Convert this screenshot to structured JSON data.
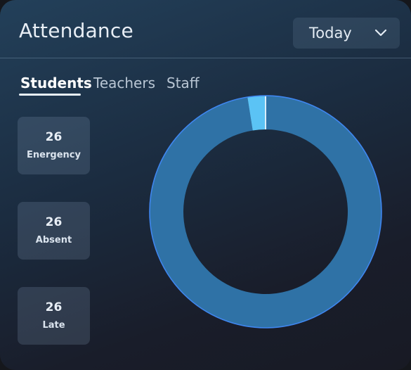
{
  "header": {
    "title": "Attendance",
    "period_select": {
      "value": "Today"
    }
  },
  "tabs": [
    {
      "label": "Students",
      "active": true
    },
    {
      "label": "Teachers",
      "active": false
    },
    {
      "label": "Staff",
      "active": false
    }
  ],
  "stats": [
    {
      "value": "26",
      "label": "Energency"
    },
    {
      "value": "26",
      "label": "Absent"
    },
    {
      "value": "26",
      "label": "Late"
    }
  ],
  "chart_data": {
    "type": "pie",
    "donut": true,
    "slices": [
      {
        "value": 97.5,
        "color": "#2f72a6"
      },
      {
        "value": 2.5,
        "color": "#5bc3f5"
      }
    ]
  },
  "colors": {
    "ring_main": "#2f72a6",
    "ring_accent": "#5bc3f5",
    "ring_outline": "#3f86ef"
  },
  "icons": {
    "dropdown": "chevron-down-icon"
  }
}
